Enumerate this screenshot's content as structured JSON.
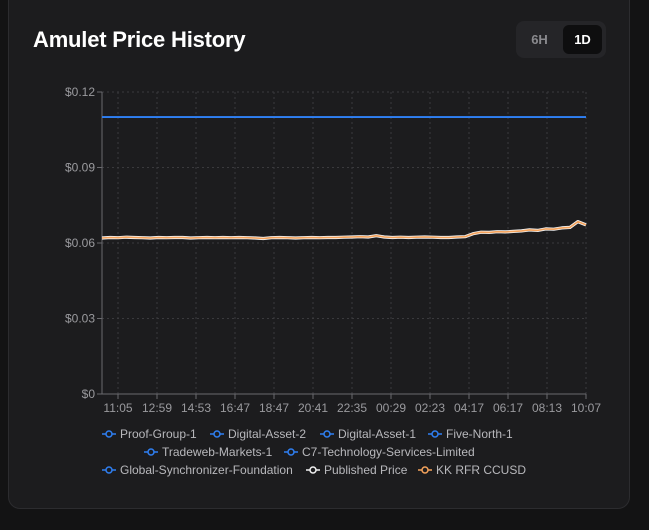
{
  "card": {
    "title": "Amulet Price History"
  },
  "range_toggle": {
    "options": [
      "6H",
      "1D"
    ],
    "selected": "1D"
  },
  "chart_data": {
    "type": "line",
    "title": "Amulet Price History",
    "xlabel": "",
    "ylabel": "",
    "ylim": [
      0,
      0.12
    ],
    "yticks": [
      0,
      0.03,
      0.06,
      0.09,
      0.12
    ],
    "ytick_labels": [
      "$0",
      "$0.03",
      "$0.06",
      "$0.09",
      "$0.12"
    ],
    "xtick_labels": [
      "11:05",
      "12:59",
      "14:53",
      "16:47",
      "18:47",
      "20:41",
      "22:35",
      "00:29",
      "02:23",
      "04:17",
      "06:17",
      "08:13",
      "10:07"
    ],
    "x_points": 61,
    "grid": true,
    "legend_position": "bottom",
    "series": [
      {
        "name": "Proof-Group-1",
        "color": "#2f7ff2",
        "flat": 0.11
      },
      {
        "name": "Digital-Asset-2",
        "color": "#2f7ff2",
        "flat": 0.11
      },
      {
        "name": "Digital-Asset-1",
        "color": "#2f7ff2",
        "flat": 0.11
      },
      {
        "name": "Five-North-1",
        "color": "#2f7ff2",
        "flat": 0.11
      },
      {
        "name": "Tradeweb-Markets-1",
        "color": "#2f7ff2",
        "flat": 0.11
      },
      {
        "name": "C7-Technology-Services-Limited",
        "color": "#2f7ff2",
        "flat": 0.11
      },
      {
        "name": "Global-Synchronizer-Foundation",
        "color": "#2f7ff2",
        "flat": 0.11
      },
      {
        "name": "Published Price",
        "color": "#f2f2f2",
        "values": [
          0.062,
          0.0622,
          0.0621,
          0.0623,
          0.0622,
          0.0621,
          0.062,
          0.0622,
          0.0621,
          0.0622,
          0.0622,
          0.062,
          0.0621,
          0.0622,
          0.0621,
          0.0622,
          0.0621,
          0.0622,
          0.0621,
          0.062,
          0.0618,
          0.0621,
          0.0622,
          0.0621,
          0.062,
          0.0621,
          0.0622,
          0.0621,
          0.0622,
          0.0622,
          0.0623,
          0.0624,
          0.0625,
          0.0624,
          0.0629,
          0.0624,
          0.0622,
          0.0623,
          0.0622,
          0.0623,
          0.0624,
          0.0623,
          0.0622,
          0.0622,
          0.0624,
          0.0625,
          0.0637,
          0.0643,
          0.0642,
          0.0645,
          0.0644,
          0.0646,
          0.0648,
          0.0652,
          0.065,
          0.0656,
          0.0655,
          0.066,
          0.0662,
          0.0685,
          0.0672
        ]
      },
      {
        "name": "KK RFR CCUSD",
        "color": "#f5a35c",
        "values": [
          0.062,
          0.0622,
          0.0621,
          0.0623,
          0.0622,
          0.0621,
          0.062,
          0.0622,
          0.0621,
          0.0622,
          0.0622,
          0.062,
          0.0621,
          0.0622,
          0.0621,
          0.0622,
          0.0621,
          0.0622,
          0.0621,
          0.062,
          0.0618,
          0.0621,
          0.0622,
          0.0621,
          0.062,
          0.0621,
          0.0622,
          0.0621,
          0.0622,
          0.0622,
          0.0623,
          0.0624,
          0.0625,
          0.0624,
          0.0629,
          0.0624,
          0.0622,
          0.0623,
          0.0622,
          0.0623,
          0.0624,
          0.0623,
          0.0622,
          0.0622,
          0.0624,
          0.0625,
          0.0637,
          0.0643,
          0.0642,
          0.0645,
          0.0644,
          0.0646,
          0.0648,
          0.0652,
          0.065,
          0.0656,
          0.0655,
          0.066,
          0.0662,
          0.0685,
          0.0672
        ]
      }
    ]
  }
}
